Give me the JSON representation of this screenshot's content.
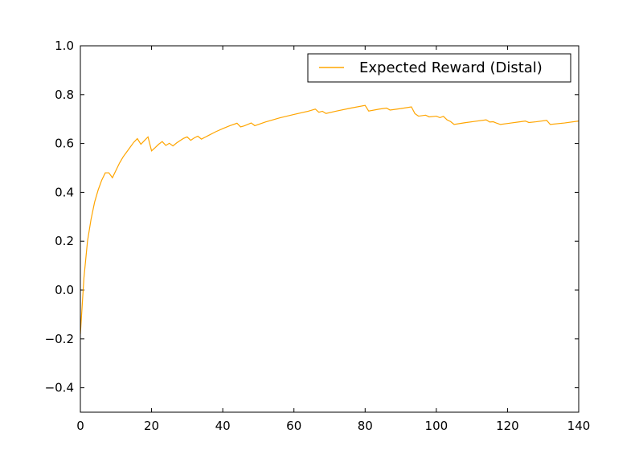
{
  "chart_data": {
    "type": "line",
    "title": "",
    "xlabel": "",
    "ylabel": "",
    "xlim": [
      0,
      140
    ],
    "ylim": [
      -0.5,
      1.0
    ],
    "x_ticks": [
      0,
      20,
      40,
      60,
      80,
      100,
      120,
      140
    ],
    "x_tick_labels": [
      "0",
      "20",
      "40",
      "60",
      "80",
      "100",
      "120",
      "140"
    ],
    "y_ticks": [
      -0.4,
      -0.2,
      0.0,
      0.2,
      0.4,
      0.6,
      0.8,
      1.0
    ],
    "y_tick_labels": [
      "−0.4",
      "−0.2",
      "0.0",
      "0.2",
      "0.4",
      "0.6",
      "0.8",
      "1.0"
    ],
    "grid": false,
    "legend_position": "upper right",
    "series": [
      {
        "name": "Expected Reward (Distal)",
        "color": "#ffa500",
        "x": [
          0,
          1,
          2,
          3,
          4,
          5,
          6,
          7,
          8,
          9,
          10,
          11,
          12,
          13,
          14,
          15,
          16,
          17,
          18,
          19,
          20,
          21,
          22,
          23,
          24,
          25,
          26,
          27,
          28,
          29,
          30,
          31,
          32,
          33,
          34,
          36,
          38,
          40,
          42,
          44,
          45,
          46,
          48,
          49,
          52,
          56,
          60,
          64,
          66,
          67,
          68,
          69,
          72,
          76,
          80,
          81,
          84,
          86,
          87,
          90,
          93,
          94,
          95,
          97,
          98,
          100,
          101,
          102,
          103,
          104,
          105,
          108,
          111,
          114,
          115,
          116,
          117,
          118,
          120,
          123,
          125,
          126,
          128,
          131,
          132,
          136,
          140
        ],
        "y": [
          -0.18,
          0.05,
          0.2,
          0.29,
          0.36,
          0.41,
          0.45,
          0.48,
          0.48,
          0.46,
          0.49,
          0.52,
          0.545,
          0.565,
          0.585,
          0.605,
          0.62,
          0.597,
          0.612,
          0.627,
          0.57,
          0.583,
          0.597,
          0.608,
          0.592,
          0.601,
          0.59,
          0.602,
          0.612,
          0.621,
          0.627,
          0.613,
          0.623,
          0.63,
          0.618,
          0.633,
          0.648,
          0.661,
          0.673,
          0.683,
          0.668,
          0.672,
          0.684,
          0.673,
          0.688,
          0.705,
          0.719,
          0.732,
          0.741,
          0.728,
          0.732,
          0.723,
          0.733,
          0.745,
          0.756,
          0.733,
          0.741,
          0.745,
          0.737,
          0.743,
          0.75,
          0.722,
          0.712,
          0.716,
          0.709,
          0.712,
          0.706,
          0.711,
          0.697,
          0.69,
          0.678,
          0.685,
          0.691,
          0.697,
          0.688,
          0.689,
          0.683,
          0.678,
          0.682,
          0.688,
          0.692,
          0.686,
          0.689,
          0.695,
          0.678,
          0.684,
          0.692
        ]
      }
    ]
  }
}
